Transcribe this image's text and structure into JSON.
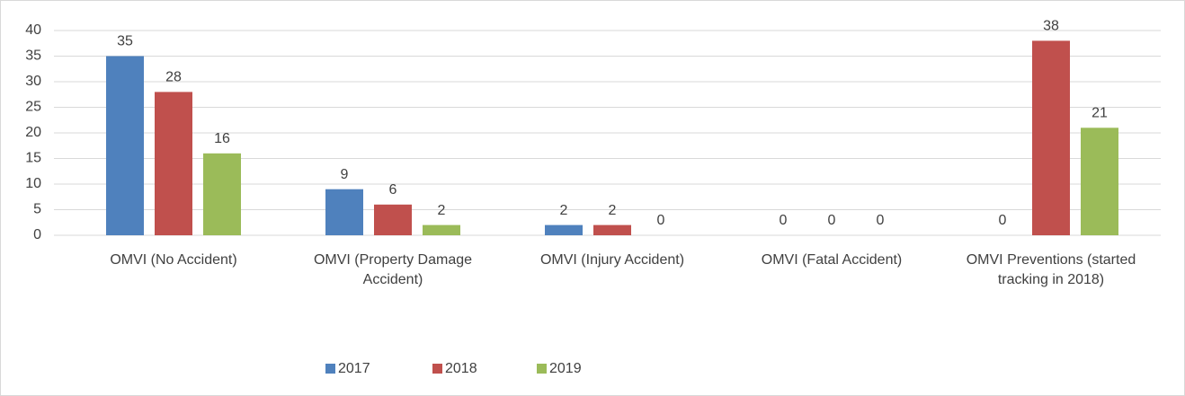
{
  "chart_data": {
    "type": "bar",
    "categories": [
      "OMVI (No Accident)",
      "OMVI  (Property Damage Accident)",
      "OMVI  (Injury Accident)",
      "OMVI (Fatal Accident)",
      "OMVI Preventions (started tracking in 2018)"
    ],
    "series": [
      {
        "name": "2017",
        "color": "#4f81bd",
        "values": [
          35,
          9,
          2,
          0,
          0
        ]
      },
      {
        "name": "2018",
        "color": "#c0504d",
        "values": [
          28,
          6,
          2,
          0,
          38
        ]
      },
      {
        "name": "2019",
        "color": "#9bbb59",
        "values": [
          16,
          2,
          0,
          0,
          21
        ]
      }
    ],
    "ylim": [
      0,
      40
    ],
    "yticks": [
      0,
      5,
      10,
      15,
      20,
      25,
      30,
      35,
      40
    ],
    "grid": true,
    "legend": "bottom"
  }
}
